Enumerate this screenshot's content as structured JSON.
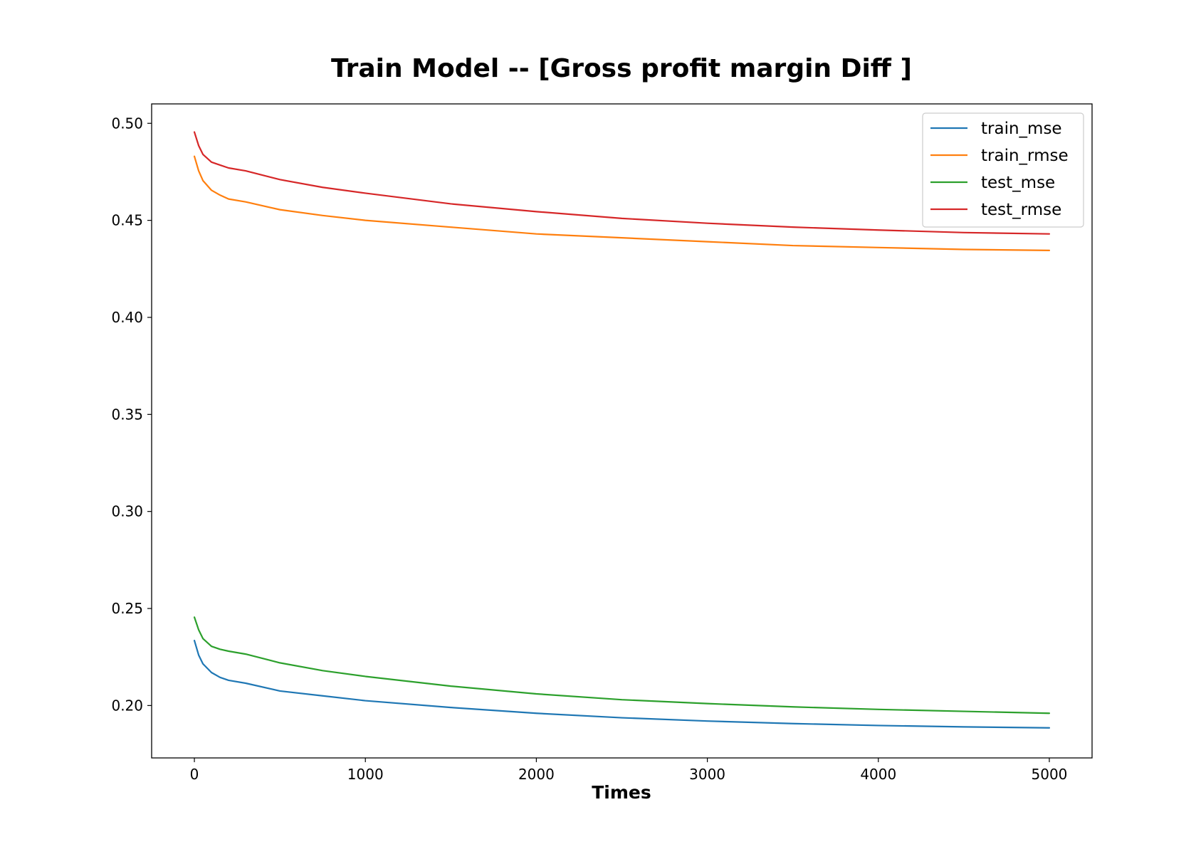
{
  "chart_data": {
    "type": "line",
    "title": "Train Model -- [Gross profit margin Diff ]",
    "xlabel": "Times",
    "ylabel": "",
    "xlim": [
      -250,
      5250
    ],
    "ylim": [
      0.173,
      0.51
    ],
    "x_ticks": [
      0,
      1000,
      2000,
      3000,
      4000,
      5000
    ],
    "x_tick_labels": [
      "0",
      "1000",
      "2000",
      "3000",
      "4000",
      "5000"
    ],
    "y_ticks": [
      0.2,
      0.25,
      0.3,
      0.35,
      0.4,
      0.45,
      0.5
    ],
    "y_tick_labels": [
      "0.20",
      "0.25",
      "0.30",
      "0.35",
      "0.40",
      "0.45",
      "0.50"
    ],
    "grid": false,
    "legend_position": "top-right",
    "x": [
      0,
      25,
      50,
      100,
      150,
      200,
      300,
      500,
      750,
      1000,
      1500,
      2000,
      2500,
      3000,
      3500,
      4000,
      4500,
      5000
    ],
    "series": [
      {
        "name": "train_mse",
        "color": "#1f77b4",
        "values": [
          0.2335,
          0.226,
          0.2215,
          0.217,
          0.2145,
          0.213,
          0.2115,
          0.2075,
          0.205,
          0.2025,
          0.199,
          0.196,
          0.1937,
          0.192,
          0.1907,
          0.1897,
          0.189,
          0.1885
        ]
      },
      {
        "name": "train_rmse",
        "color": "#ff7f0e",
        "values": [
          0.483,
          0.4755,
          0.4705,
          0.4655,
          0.463,
          0.461,
          0.4595,
          0.4555,
          0.4525,
          0.45,
          0.4465,
          0.443,
          0.441,
          0.439,
          0.437,
          0.436,
          0.435,
          0.4345
        ]
      },
      {
        "name": "test_mse",
        "color": "#2ca02c",
        "values": [
          0.2455,
          0.239,
          0.2345,
          0.2305,
          0.229,
          0.228,
          0.2265,
          0.222,
          0.218,
          0.215,
          0.21,
          0.206,
          0.203,
          0.201,
          0.1993,
          0.198,
          0.197,
          0.196
        ]
      },
      {
        "name": "test_rmse",
        "color": "#d62728",
        "values": [
          0.4955,
          0.4885,
          0.484,
          0.48,
          0.4785,
          0.477,
          0.4755,
          0.471,
          0.467,
          0.464,
          0.4585,
          0.4545,
          0.451,
          0.4485,
          0.4465,
          0.445,
          0.4437,
          0.443
        ]
      }
    ]
  }
}
